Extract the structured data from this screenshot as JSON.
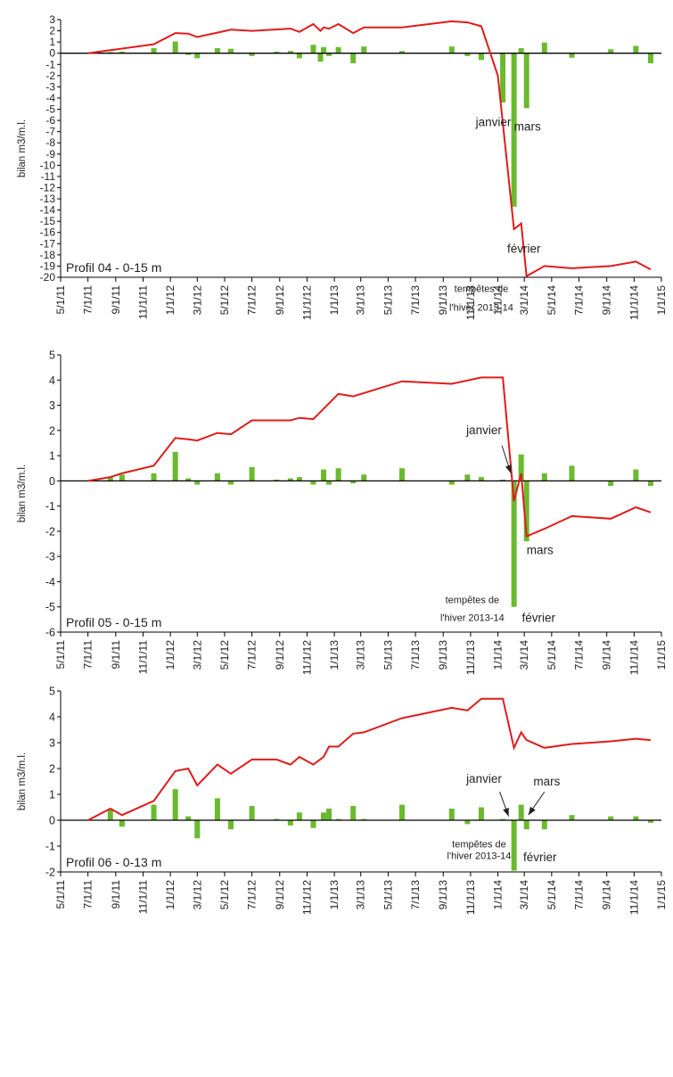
{
  "colors": {
    "cumulative_line": "#e01b1b",
    "bars": "#6aba2e",
    "axis": "#000000"
  },
  "x_axis_ticks": [
    "5/1/11",
    "7/1/11",
    "9/1/11",
    "11/1/11",
    "1/1/12",
    "3/1/12",
    "5/1/12",
    "7/1/12",
    "9/1/12",
    "11/1/12",
    "1/1/13",
    "3/1/13",
    "5/1/13",
    "7/1/13",
    "9/1/13",
    "11/1/13",
    "1/1/14",
    "3/1/14",
    "5/1/14",
    "7/1/14",
    "9/1/14",
    "11/1/14",
    "1/1/15"
  ],
  "chart_data": [
    {
      "type": "bar",
      "title": "Profil 04 - 0-15 m",
      "ylabel": "bilan m3/m.l.",
      "ylim": [
        -20,
        3
      ],
      "yticks": [
        3,
        2,
        1,
        0,
        -1,
        -2,
        -3,
        -4,
        -5,
        -6,
        -7,
        -8,
        -9,
        -10,
        -11,
        -12,
        -13,
        -14,
        -15,
        -16,
        -17,
        -18,
        -19,
        -20
      ],
      "xlim": [
        "2011-05-01",
        "2015-01-01"
      ],
      "annotations": [
        {
          "text": "janvier",
          "x": "2013-12-22",
          "y": -6.5
        },
        {
          "text": "mars",
          "x": "2014-03-08",
          "y": -6.9
        },
        {
          "text": "février",
          "x": "2014-02-28",
          "y": -17.8
        },
        {
          "text": "tempêtes de",
          "x": "2013-11-25",
          "y": -21.3
        },
        {
          "text": "l'hiver 2013-14",
          "x": "2013-11-25",
          "y": -23.0
        }
      ],
      "series": [
        {
          "kind": "bars",
          "values": [
            [
              "2011-08-20",
              0.1
            ],
            [
              "2011-09-15",
              0.15
            ],
            [
              "2011-11-25",
              0.45
            ],
            [
              "2012-01-12",
              1.05
            ],
            [
              "2012-02-10",
              -0.15
            ],
            [
              "2012-03-01",
              -0.45
            ],
            [
              "2012-04-15",
              0.45
            ],
            [
              "2012-05-15",
              0.4
            ],
            [
              "2012-07-01",
              -0.25
            ],
            [
              "2012-08-25",
              0.15
            ],
            [
              "2012-09-25",
              0.2
            ],
            [
              "2012-10-15",
              -0.45
            ],
            [
              "2012-11-15",
              0.75
            ],
            [
              "2012-12-01",
              -0.75
            ],
            [
              "2012-12-08",
              0.55
            ],
            [
              "2012-12-20",
              -0.25
            ],
            [
              "2013-01-10",
              0.55
            ],
            [
              "2013-02-12",
              -0.9
            ],
            [
              "2013-03-08",
              0.6
            ],
            [
              "2013-06-01",
              0.2
            ],
            [
              "2013-09-20",
              0.6
            ],
            [
              "2013-10-25",
              -0.25
            ],
            [
              "2013-11-25",
              -0.6
            ],
            [
              "2014-01-12",
              -4.4
            ],
            [
              "2014-02-06",
              -13.7
            ],
            [
              "2014-02-22",
              0.45
            ],
            [
              "2014-03-06",
              -4.9
            ],
            [
              "2014-04-15",
              0.95
            ],
            [
              "2014-06-15",
              -0.4
            ],
            [
              "2014-09-10",
              0.35
            ],
            [
              "2014-11-05",
              0.65
            ],
            [
              "2014-12-08",
              -0.9
            ]
          ]
        },
        {
          "kind": "line",
          "values": [
            [
              "2011-07-01",
              0
            ],
            [
              "2011-11-25",
              0.8
            ],
            [
              "2012-01-12",
              1.8
            ],
            [
              "2012-02-10",
              1.75
            ],
            [
              "2012-03-01",
              1.45
            ],
            [
              "2012-05-15",
              2.1
            ],
            [
              "2012-07-01",
              2.0
            ],
            [
              "2012-09-25",
              2.2
            ],
            [
              "2012-10-15",
              1.9
            ],
            [
              "2012-11-15",
              2.6
            ],
            [
              "2012-12-01",
              2.0
            ],
            [
              "2012-12-08",
              2.3
            ],
            [
              "2012-12-20",
              2.2
            ],
            [
              "2013-01-10",
              2.6
            ],
            [
              "2013-02-12",
              1.8
            ],
            [
              "2013-03-08",
              2.3
            ],
            [
              "2013-06-01",
              2.3
            ],
            [
              "2013-09-20",
              2.85
            ],
            [
              "2013-10-25",
              2.75
            ],
            [
              "2013-11-25",
              2.4
            ],
            [
              "2014-01-01",
              -2.0
            ],
            [
              "2014-02-06",
              -15.7
            ],
            [
              "2014-02-22",
              -15.2
            ],
            [
              "2014-03-06",
              -19.9
            ],
            [
              "2014-04-15",
              -19.0
            ],
            [
              "2014-06-15",
              -19.2
            ],
            [
              "2014-09-10",
              -19.0
            ],
            [
              "2014-11-05",
              -18.6
            ],
            [
              "2014-12-08",
              -19.3
            ]
          ]
        }
      ]
    },
    {
      "type": "bar",
      "title": "Profil 05 - 0-15 m",
      "ylabel": "bilan m3/m.l.",
      "ylim": [
        -6,
        5
      ],
      "yticks": [
        5,
        4,
        3,
        2,
        1,
        0,
        -1,
        -2,
        -3,
        -4,
        -5,
        -6
      ],
      "xlim": [
        "2011-05-01",
        "2015-01-01"
      ],
      "annotations": [
        {
          "text": "janvier",
          "x": "2013-12-01",
          "y": 1.85
        },
        {
          "text": "mars",
          "x": "2014-04-05",
          "y": -2.9
        },
        {
          "text": "tempêtes de",
          "x": "2013-11-05",
          "y": -4.85
        },
        {
          "text": "l'hiver 2013-14",
          "x": "2013-11-05",
          "y": -5.55
        },
        {
          "text": "février",
          "x": "2014-04-02",
          "y": -5.6
        }
      ],
      "arrows": [
        {
          "from": [
            "2014-01-10",
            1.4
          ],
          "to": [
            "2014-01-30",
            0.3
          ]
        }
      ],
      "series": [
        {
          "kind": "bars",
          "values": [
            [
              "2011-08-20",
              0.15
            ],
            [
              "2011-09-15",
              0.25
            ],
            [
              "2011-11-25",
              0.3
            ],
            [
              "2012-01-12",
              1.15
            ],
            [
              "2012-02-10",
              0.1
            ],
            [
              "2012-03-01",
              -0.15
            ],
            [
              "2012-04-15",
              0.3
            ],
            [
              "2012-05-15",
              -0.15
            ],
            [
              "2012-07-01",
              0.55
            ],
            [
              "2012-08-25",
              0.05
            ],
            [
              "2012-09-25",
              0.1
            ],
            [
              "2012-10-15",
              0.15
            ],
            [
              "2012-11-15",
              -0.15
            ],
            [
              "2012-12-08",
              0.45
            ],
            [
              "2012-12-20",
              -0.15
            ],
            [
              "2013-01-10",
              0.5
            ],
            [
              "2013-02-12",
              -0.1
            ],
            [
              "2013-03-08",
              0.25
            ],
            [
              "2013-06-01",
              0.5
            ],
            [
              "2013-09-20",
              -0.15
            ],
            [
              "2013-10-25",
              0.25
            ],
            [
              "2013-11-25",
              0.15
            ],
            [
              "2014-01-12",
              0.05
            ],
            [
              "2014-02-06",
              -5.0
            ],
            [
              "2014-02-22",
              1.05
            ],
            [
              "2014-03-06",
              -2.4
            ],
            [
              "2014-04-15",
              0.3
            ],
            [
              "2014-06-15",
              0.6
            ],
            [
              "2014-09-10",
              -0.2
            ],
            [
              "2014-11-05",
              0.45
            ],
            [
              "2014-12-08",
              -0.2
            ]
          ]
        },
        {
          "kind": "line",
          "values": [
            [
              "2011-07-01",
              0
            ],
            [
              "2011-08-20",
              0.15
            ],
            [
              "2011-09-15",
              0.3
            ],
            [
              "2011-11-25",
              0.6
            ],
            [
              "2012-01-12",
              1.7
            ],
            [
              "2012-02-10",
              1.65
            ],
            [
              "2012-03-01",
              1.6
            ],
            [
              "2012-04-15",
              1.9
            ],
            [
              "2012-05-15",
              1.85
            ],
            [
              "2012-07-01",
              2.4
            ],
            [
              "2012-09-25",
              2.4
            ],
            [
              "2012-10-15",
              2.5
            ],
            [
              "2012-11-15",
              2.45
            ],
            [
              "2013-01-10",
              3.45
            ],
            [
              "2013-02-12",
              3.35
            ],
            [
              "2013-06-01",
              3.95
            ],
            [
              "2013-09-20",
              3.85
            ],
            [
              "2013-11-25",
              4.1
            ],
            [
              "2014-01-12",
              4.1
            ],
            [
              "2014-02-06",
              -0.8
            ],
            [
              "2014-02-22",
              0.3
            ],
            [
              "2014-03-06",
              -2.2
            ],
            [
              "2014-04-15",
              -1.9
            ],
            [
              "2014-06-15",
              -1.4
            ],
            [
              "2014-09-10",
              -1.5
            ],
            [
              "2014-11-05",
              -1.05
            ],
            [
              "2014-12-08",
              -1.25
            ]
          ]
        }
      ]
    },
    {
      "type": "bar",
      "title": "Profil 06 - 0-13 m",
      "ylabel": "bilan m3/m.l.",
      "ylim": [
        -2,
        5
      ],
      "yticks": [
        5,
        4,
        3,
        2,
        1,
        0,
        -1,
        -2
      ],
      "xlim": [
        "2011-05-01",
        "2015-01-01"
      ],
      "annotations": [
        {
          "text": "janvier",
          "x": "2013-12-01",
          "y": 1.45
        },
        {
          "text": "mars",
          "x": "2014-04-20",
          "y": 1.35
        },
        {
          "text": "tempêtes de",
          "x": "2013-11-20",
          "y": -1.05
        },
        {
          "text": "l'hiver 2013-14",
          "x": "2013-11-20",
          "y": -1.5
        },
        {
          "text": "février",
          "x": "2014-04-05",
          "y": -1.58
        }
      ],
      "arrows": [
        {
          "from": [
            "2014-01-05",
            1.1
          ],
          "to": [
            "2014-01-25",
            0.15
          ]
        },
        {
          "from": [
            "2014-04-15",
            1.1
          ],
          "to": [
            "2014-03-10",
            0.2
          ]
        }
      ],
      "series": [
        {
          "kind": "bars",
          "values": [
            [
              "2011-08-20",
              0.45
            ],
            [
              "2011-09-15",
              -0.25
            ],
            [
              "2011-11-25",
              0.6
            ],
            [
              "2012-01-12",
              1.2
            ],
            [
              "2012-02-10",
              0.15
            ],
            [
              "2012-03-01",
              -0.7
            ],
            [
              "2012-04-15",
              0.85
            ],
            [
              "2012-05-15",
              -0.35
            ],
            [
              "2012-07-01",
              0.55
            ],
            [
              "2012-08-25",
              0.05
            ],
            [
              "2012-09-25",
              -0.2
            ],
            [
              "2012-10-15",
              0.3
            ],
            [
              "2012-11-15",
              -0.3
            ],
            [
              "2012-12-08",
              0.3
            ],
            [
              "2012-12-20",
              0.45
            ],
            [
              "2013-01-10",
              0.05
            ],
            [
              "2013-02-12",
              0.55
            ],
            [
              "2013-03-08",
              0.05
            ],
            [
              "2013-06-01",
              0.6
            ],
            [
              "2013-09-20",
              0.45
            ],
            [
              "2013-10-25",
              -0.15
            ],
            [
              "2013-11-25",
              0.5
            ],
            [
              "2014-01-12",
              0.05
            ],
            [
              "2014-02-06",
              -1.95
            ],
            [
              "2014-02-22",
              0.6
            ],
            [
              "2014-03-06",
              -0.35
            ],
            [
              "2014-04-15",
              -0.35
            ],
            [
              "2014-06-15",
              0.2
            ],
            [
              "2014-09-10",
              0.15
            ],
            [
              "2014-11-05",
              0.15
            ],
            [
              "2014-12-08",
              -0.1
            ]
          ]
        },
        {
          "kind": "line",
          "values": [
            [
              "2011-07-01",
              0
            ],
            [
              "2011-08-20",
              0.45
            ],
            [
              "2011-09-15",
              0.2
            ],
            [
              "2011-11-25",
              0.75
            ],
            [
              "2012-01-12",
              1.9
            ],
            [
              "2012-02-10",
              2.0
            ],
            [
              "2012-03-01",
              1.35
            ],
            [
              "2012-04-15",
              2.15
            ],
            [
              "2012-05-15",
              1.8
            ],
            [
              "2012-07-01",
              2.35
            ],
            [
              "2012-08-25",
              2.35
            ],
            [
              "2012-09-25",
              2.15
            ],
            [
              "2012-10-15",
              2.45
            ],
            [
              "2012-11-15",
              2.15
            ],
            [
              "2012-12-08",
              2.45
            ],
            [
              "2012-12-20",
              2.85
            ],
            [
              "2013-01-10",
              2.85
            ],
            [
              "2013-02-12",
              3.35
            ],
            [
              "2013-03-08",
              3.4
            ],
            [
              "2013-06-01",
              3.95
            ],
            [
              "2013-09-20",
              4.35
            ],
            [
              "2013-10-25",
              4.25
            ],
            [
              "2013-11-25",
              4.7
            ],
            [
              "2014-01-12",
              4.7
            ],
            [
              "2014-02-06",
              2.8
            ],
            [
              "2014-02-22",
              3.4
            ],
            [
              "2014-03-06",
              3.1
            ],
            [
              "2014-04-15",
              2.8
            ],
            [
              "2014-06-15",
              2.95
            ],
            [
              "2014-09-10",
              3.05
            ],
            [
              "2014-11-05",
              3.15
            ],
            [
              "2014-12-08",
              3.1
            ]
          ]
        }
      ]
    }
  ]
}
